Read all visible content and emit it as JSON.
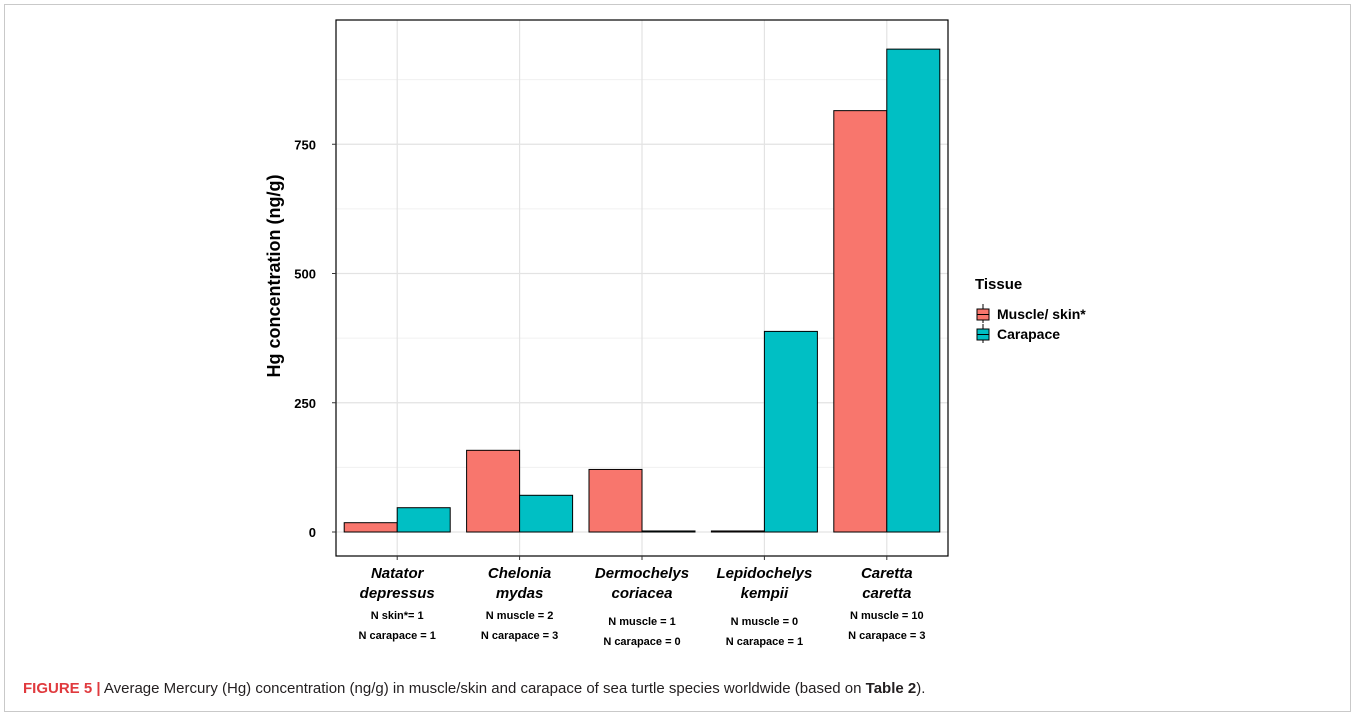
{
  "chart_data": {
    "type": "bar",
    "ylabel": "Hg concentration (ng/g)",
    "ylim": [
      0,
      940
    ],
    "yticks": [
      0,
      250,
      500,
      750
    ],
    "grid": true,
    "categories": [
      {
        "lines": [
          "Natator",
          "depressus"
        ],
        "notes": [
          "N skin*= 1",
          "N carapace = 1"
        ]
      },
      {
        "lines": [
          "Chelonia",
          "mydas"
        ],
        "notes": [
          "N muscle = 2",
          "N carapace = 3"
        ]
      },
      {
        "lines": [
          "Dermochelys",
          "coriacea"
        ],
        "notes": [
          "N muscle = 1",
          "N carapace = 0"
        ]
      },
      {
        "lines": [
          "Lepidochelys",
          "kempii"
        ],
        "notes": [
          "N muscle = 0",
          "N carapace = 1"
        ]
      },
      {
        "lines": [
          "Caretta",
          "caretta"
        ],
        "notes": [
          "N muscle = 10",
          "N carapace = 3"
        ]
      }
    ],
    "series": [
      {
        "name": "Muscle/ skin*",
        "color": "#f8766d",
        "values": [
          18,
          158,
          121,
          2,
          815
        ]
      },
      {
        "name": "Carapace",
        "color": "#00bfc4",
        "values": [
          47,
          71,
          2,
          388,
          934
        ]
      }
    ],
    "legend": {
      "title": "Tissue",
      "position": "right"
    }
  },
  "caption": {
    "label": "FIGURE 5 |",
    "text_before": " Average Mercury (Hg) concentration (ng/g) in muscle/skin and carapace of sea turtle species worldwide (based on ",
    "ref": "Table 2",
    "text_after": ")."
  }
}
